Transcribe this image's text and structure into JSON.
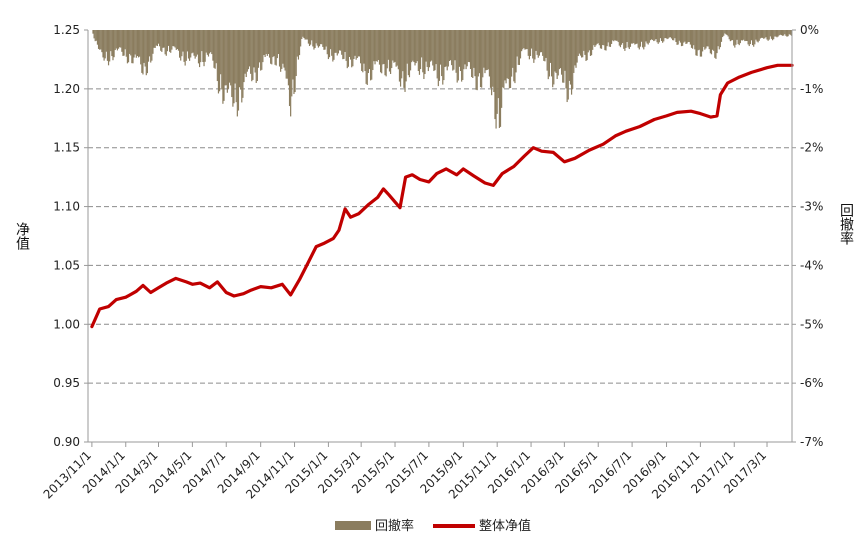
{
  "chart_data": {
    "type": "line",
    "title": "",
    "ylabel_left": "净值",
    "ylabel_right": "回撤率",
    "ylim_left": [
      0.9,
      1.25
    ],
    "yticks_left": [
      "1.25",
      "1.20",
      "1.15",
      "1.10",
      "1.05",
      "1.00",
      "0.95",
      "0.90"
    ],
    "ylim_right": [
      -7,
      0
    ],
    "yticks_right": [
      "0%",
      "-1%",
      "-2%",
      "-3%",
      "-4%",
      "-5%",
      "-6%",
      "-7%"
    ],
    "x_ticks": [
      "2013/11/1",
      "2014/1/1",
      "2014/3/1",
      "2014/5/1",
      "2014/7/1",
      "2014/9/1",
      "2014/11/1",
      "2015/1/1",
      "2015/3/1",
      "2015/5/1",
      "2015/7/1",
      "2015/9/1",
      "2015/11/1",
      "2016/1/1",
      "2016/3/1",
      "2016/5/1",
      "2016/7/1",
      "2016/9/1",
      "2016/11/1",
      "2017/1/1",
      "2017/3/1"
    ],
    "grid": "horizontal dashed",
    "legend_position": "bottom",
    "series": [
      {
        "name": "回撤率",
        "kind": "bar",
        "axis": "right",
        "color": "#8b7d5f",
        "note_unit": "%",
        "anchors": [
          [
            "2013/11/1",
            0
          ],
          [
            "2013/11/20",
            -0.7
          ],
          [
            "2013/12/15",
            -0.5
          ],
          [
            "2014/1/10",
            -0.6
          ],
          [
            "2014/2/1",
            -0.9
          ],
          [
            "2014/3/1",
            -0.4
          ],
          [
            "2014/4/1",
            -0.5
          ],
          [
            "2014/5/1",
            -0.7
          ],
          [
            "2014/6/1",
            -0.6
          ],
          [
            "2014/6/20",
            -1.2
          ],
          [
            "2014/7/10",
            -1.7
          ],
          [
            "2014/8/1",
            -1.3
          ],
          [
            "2014/9/1",
            -0.8
          ],
          [
            "2014/10/1",
            -0.6
          ],
          [
            "2014/10/25",
            -1.6
          ],
          [
            "2014/11/15",
            -0.2
          ],
          [
            "2014/12/15",
            -0.4
          ],
          [
            "2015/1/15",
            -0.6
          ],
          [
            "2015/2/15",
            -0.7
          ],
          [
            "2015/3/15",
            -1.0
          ],
          [
            "2015/4/15",
            -0.8
          ],
          [
            "2015/5/15",
            -1.1
          ],
          [
            "2015/6/15",
            -0.8
          ],
          [
            "2015/7/15",
            -1.0
          ],
          [
            "2015/8/15",
            -0.9
          ],
          [
            "2015/9/15",
            -1.0
          ],
          [
            "2015/10/20",
            -1.2
          ],
          [
            "2015/11/5",
            -2.0
          ],
          [
            "2015/11/25",
            -1.1
          ],
          [
            "2015/12/20",
            -0.5
          ],
          [
            "2016/1/15",
            -0.6
          ],
          [
            "2016/2/15",
            -1.1
          ],
          [
            "2016/3/10",
            -1.3
          ],
          [
            "2016/4/1",
            -0.6
          ],
          [
            "2016/5/1",
            -0.4
          ],
          [
            "2016/6/1",
            -0.3
          ],
          [
            "2016/7/1",
            -0.4
          ],
          [
            "2016/8/1",
            -0.3
          ],
          [
            "2016/9/1",
            -0.2
          ],
          [
            "2016/10/1",
            -0.3
          ],
          [
            "2016/11/1",
            -0.5
          ],
          [
            "2016/12/1",
            -0.5
          ],
          [
            "2016/12/15",
            -0.1
          ],
          [
            "2017/1/1",
            -0.3
          ],
          [
            "2017/2/1",
            -0.3
          ],
          [
            "2017/3/1",
            -0.2
          ],
          [
            "2017/4/15",
            -0.1
          ]
        ]
      },
      {
        "name": "整体净值",
        "kind": "line",
        "axis": "left",
        "color": "#c00000",
        "points": [
          [
            "2013/11/1",
            0.998
          ],
          [
            "2013/11/15",
            1.013
          ],
          [
            "2013/12/1",
            1.015
          ],
          [
            "2013/12/15",
            1.021
          ],
          [
            "2014/1/1",
            1.023
          ],
          [
            "2014/1/20",
            1.028
          ],
          [
            "2014/2/1",
            1.033
          ],
          [
            "2014/2/15",
            1.027
          ],
          [
            "2014/3/1",
            1.031
          ],
          [
            "2014/3/15",
            1.035
          ],
          [
            "2014/4/1",
            1.039
          ],
          [
            "2014/4/20",
            1.036
          ],
          [
            "2014/5/1",
            1.034
          ],
          [
            "2014/5/15",
            1.035
          ],
          [
            "2014/6/1",
            1.031
          ],
          [
            "2014/6/15",
            1.036
          ],
          [
            "2014/7/1",
            1.027
          ],
          [
            "2014/7/15",
            1.024
          ],
          [
            "2014/8/1",
            1.026
          ],
          [
            "2014/8/15",
            1.029
          ],
          [
            "2014/9/1",
            1.032
          ],
          [
            "2014/9/20",
            1.031
          ],
          [
            "2014/10/10",
            1.034
          ],
          [
            "2014/10/25",
            1.025
          ],
          [
            "2014/11/10",
            1.038
          ],
          [
            "2014/11/25",
            1.052
          ],
          [
            "2014/12/10",
            1.066
          ],
          [
            "2014/12/25",
            1.069
          ],
          [
            "2015/1/10",
            1.073
          ],
          [
            "2015/1/20",
            1.08
          ],
          [
            "2015/1/31",
            1.098
          ],
          [
            "2015/2/10",
            1.091
          ],
          [
            "2015/2/25",
            1.094
          ],
          [
            "2015/3/15",
            1.102
          ],
          [
            "2015/3/31",
            1.108
          ],
          [
            "2015/4/10",
            1.115
          ],
          [
            "2015/4/20",
            1.11
          ],
          [
            "2015/5/1",
            1.104
          ],
          [
            "2015/5/10",
            1.099
          ],
          [
            "2015/5/20",
            1.125
          ],
          [
            "2015/6/1",
            1.127
          ],
          [
            "2015/6/15",
            1.123
          ],
          [
            "2015/7/1",
            1.121
          ],
          [
            "2015/7/15",
            1.128
          ],
          [
            "2015/8/1",
            1.132
          ],
          [
            "2015/8/20",
            1.127
          ],
          [
            "2015/9/1",
            1.132
          ],
          [
            "2015/9/20",
            1.126
          ],
          [
            "2015/10/10",
            1.12
          ],
          [
            "2015/10/25",
            1.118
          ],
          [
            "2015/11/10",
            1.128
          ],
          [
            "2015/12/1",
            1.134
          ],
          [
            "2015/12/20",
            1.143
          ],
          [
            "2016/1/5",
            1.15
          ],
          [
            "2016/1/20",
            1.147
          ],
          [
            "2016/2/10",
            1.146
          ],
          [
            "2016/3/1",
            1.138
          ],
          [
            "2016/3/20",
            1.141
          ],
          [
            "2016/4/15",
            1.148
          ],
          [
            "2016/5/10",
            1.153
          ],
          [
            "2016/6/1",
            1.16
          ],
          [
            "2016/6/20",
            1.164
          ],
          [
            "2016/7/15",
            1.168
          ],
          [
            "2016/8/10",
            1.174
          ],
          [
            "2016/9/1",
            1.177
          ],
          [
            "2016/9/20",
            1.18
          ],
          [
            "2016/10/15",
            1.181
          ],
          [
            "2016/11/1",
            1.179
          ],
          [
            "2016/11/20",
            1.176
          ],
          [
            "2016/12/1",
            1.177
          ],
          [
            "2016/12/7",
            1.195
          ],
          [
            "2016/12/20",
            1.205
          ],
          [
            "2017/1/10",
            1.21
          ],
          [
            "2017/2/1",
            1.214
          ],
          [
            "2017/3/1",
            1.218
          ],
          [
            "2017/3/20",
            1.22
          ],
          [
            "2017/4/15",
            1.22
          ]
        ]
      }
    ]
  }
}
